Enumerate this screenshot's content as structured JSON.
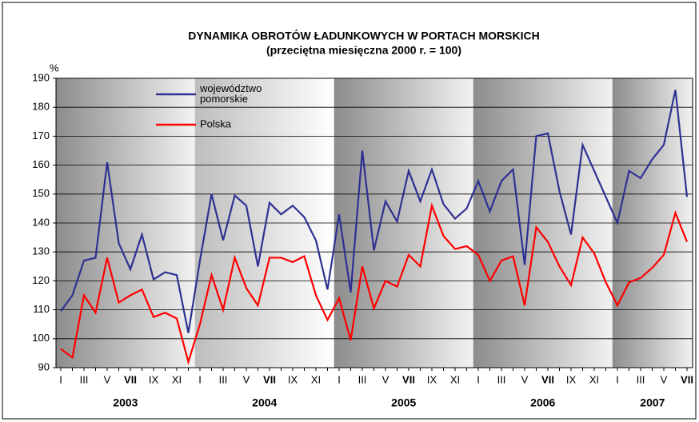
{
  "chart_data": {
    "type": "line",
    "title": "DYNAMIKA  OBROTÓW  ŁADUNKOWYCH  W  PORTACH  MORSKICH",
    "subtitle": "(przeciętna miesięczna 2000 r. = 100)",
    "y_unit": "%",
    "categories": [
      "I",
      null,
      "III",
      null,
      "V",
      null,
      "VII",
      null,
      "IX",
      null,
      "XI",
      null,
      "I",
      null,
      "III",
      null,
      "V",
      null,
      "VII",
      null,
      "IX",
      null,
      "XI",
      null,
      "I",
      null,
      "III",
      null,
      "V",
      null,
      "VII",
      null,
      "IX",
      null,
      "XI",
      null,
      "I",
      null,
      "III",
      null,
      "V",
      null,
      "VII",
      null,
      "IX",
      null,
      "XI",
      null,
      "I",
      null,
      "III",
      null,
      "V",
      null,
      "VII"
    ],
    "years": [
      "2003",
      "2004",
      "2005",
      "2006",
      "2007"
    ],
    "series": [
      {
        "name": "województwo pomorskie",
        "color": "#2e3192",
        "values": [
          109.5,
          115,
          127,
          128,
          161,
          133,
          124,
          136,
          120.5,
          123,
          122,
          102,
          127,
          150,
          134,
          149.5,
          146,
          125,
          147,
          143,
          146,
          142,
          134,
          117,
          143,
          116,
          165,
          130.5,
          147.5,
          140.5,
          158,
          147.5,
          158.5,
          146.5,
          141.5,
          145,
          154.5,
          144,
          154.5,
          158.5,
          125.5,
          170,
          171,
          151,
          136,
          167,
          158,
          149,
          140,
          158,
          155.5,
          162,
          167,
          186,
          149
        ]
      },
      {
        "name": "Polska",
        "color": "#ff0000",
        "values": [
          96.5,
          93.5,
          115,
          109,
          128,
          112.5,
          115,
          117,
          107.5,
          109,
          107,
          92,
          105,
          122,
          110,
          128,
          117.5,
          111.5,
          128,
          128,
          126.5,
          128.5,
          115,
          106.5,
          114,
          99.5,
          125,
          110.5,
          120,
          118,
          129,
          125,
          146,
          135.5,
          131,
          132,
          129,
          120,
          127,
          128.5,
          111.5,
          138.5,
          133.5,
          125,
          118.5,
          135,
          129.5,
          119.5,
          111.5,
          119.5,
          121,
          124.5,
          129,
          143.5,
          133.5
        ]
      }
    ],
    "ylim": [
      90,
      190
    ],
    "yticks": [
      90,
      100,
      110,
      120,
      130,
      140,
      150,
      160,
      170,
      180,
      190
    ],
    "grid": true
  }
}
